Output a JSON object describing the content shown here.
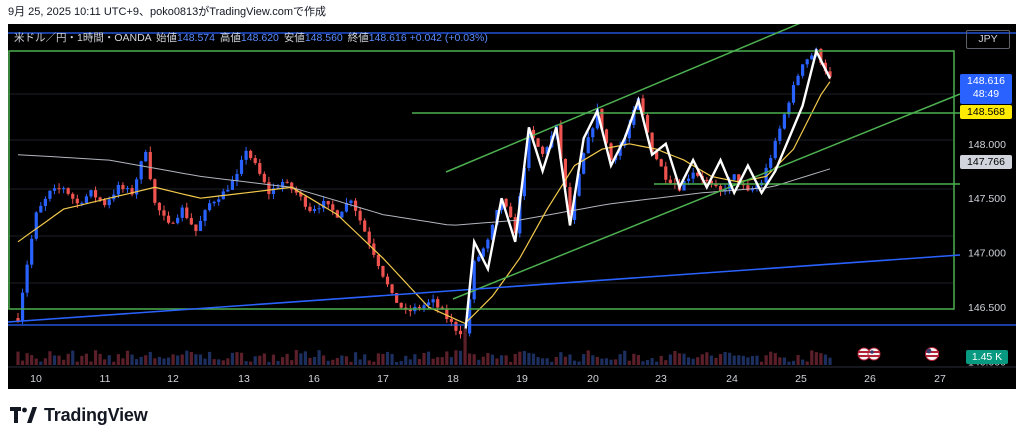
{
  "caption": "9月 25, 2025 10:11 UTC+9、poko0813がTradingView.comで作成",
  "legend": {
    "symbol": "米ドル／円・1時間・OANDA",
    "open_label": "始値",
    "open": "148.574",
    "high_label": "高値",
    "high": "148.620",
    "low_label": "安値",
    "low": "148.560",
    "close_label": "終値",
    "close": "148.616",
    "change": "+0.042 (+0.03%)"
  },
  "currency": "JPY",
  "price_tags": {
    "last_price": "148.616",
    "countdown": "48:49",
    "yellow_ma": "148.568",
    "gray_ma": "147.766",
    "volume": "1.45 K"
  },
  "brand": "TradingView",
  "colors": {
    "up": "#2962ff",
    "down": "#ef5350",
    "channel": "#4caf50",
    "trendline": "#2962ff",
    "ma_fast": "#f2c94c",
    "ma_slow": "#b2b5be",
    "wave": "#ffffff",
    "background": "#000000"
  },
  "chart_data": {
    "type": "candlestick",
    "symbol": "USD/JPY",
    "timeframe": "1時間",
    "x_ticks": [
      "10",
      "11",
      "12",
      "13",
      "16",
      "17",
      "18",
      "19",
      "20",
      "23",
      "24",
      "25",
      "26",
      "27"
    ],
    "y_ticks": [
      "148.000",
      "147.500",
      "147.000",
      "146.500",
      "146.000"
    ],
    "ylim": [
      145.95,
      149.1
    ],
    "price_path": [
      [
        0,
        146.4
      ],
      [
        2,
        146.9
      ],
      [
        4,
        147.35
      ],
      [
        7,
        147.55
      ],
      [
        10,
        147.6
      ],
      [
        13,
        147.45
      ],
      [
        16,
        147.55
      ],
      [
        19,
        147.45
      ],
      [
        22,
        147.6
      ],
      [
        25,
        147.55
      ],
      [
        28,
        147.95
      ],
      [
        30,
        147.45
      ],
      [
        33,
        147.25
      ],
      [
        36,
        147.4
      ],
      [
        39,
        147.2
      ],
      [
        42,
        147.45
      ],
      [
        45,
        147.55
      ],
      [
        48,
        147.7
      ],
      [
        50,
        147.95
      ],
      [
        52,
        147.8
      ],
      [
        55,
        147.55
      ],
      [
        58,
        147.65
      ],
      [
        61,
        147.55
      ],
      [
        64,
        147.4
      ],
      [
        67,
        147.45
      ],
      [
        70,
        147.35
      ],
      [
        73,
        147.5
      ],
      [
        75,
        147.3
      ],
      [
        78,
        147.0
      ],
      [
        80,
        146.8
      ],
      [
        82,
        146.6
      ],
      [
        85,
        146.45
      ],
      [
        88,
        146.5
      ],
      [
        91,
        146.55
      ],
      [
        94,
        146.4
      ],
      [
        96,
        146.3
      ],
      [
        98,
        146.25
      ],
      [
        100,
        146.9
      ],
      [
        103,
        147.1
      ],
      [
        106,
        147.5
      ],
      [
        109,
        147.2
      ],
      [
        112,
        148.1
      ],
      [
        115,
        147.9
      ],
      [
        118,
        148.15
      ],
      [
        121,
        147.3
      ],
      [
        124,
        147.9
      ],
      [
        127,
        148.3
      ],
      [
        130,
        147.85
      ],
      [
        133,
        148.05
      ],
      [
        136,
        148.4
      ],
      [
        139,
        147.95
      ],
      [
        142,
        147.7
      ],
      [
        145,
        147.6
      ],
      [
        148,
        147.75
      ],
      [
        151,
        147.65
      ],
      [
        154,
        147.55
      ],
      [
        157,
        147.7
      ],
      [
        160,
        147.55
      ],
      [
        163,
        147.65
      ],
      [
        166,
        148.0
      ],
      [
        169,
        148.4
      ],
      [
        172,
        148.75
      ],
      [
        175,
        148.85
      ],
      [
        178,
        148.6
      ]
    ],
    "ma_fast": [
      [
        0,
        147.1
      ],
      [
        10,
        147.4
      ],
      [
        20,
        147.5
      ],
      [
        30,
        147.6
      ],
      [
        40,
        147.5
      ],
      [
        50,
        147.55
      ],
      [
        60,
        147.6
      ],
      [
        70,
        147.35
      ],
      [
        80,
        146.95
      ],
      [
        90,
        146.5
      ],
      [
        98,
        146.35
      ],
      [
        104,
        146.6
      ],
      [
        110,
        146.95
      ],
      [
        116,
        147.4
      ],
      [
        122,
        147.8
      ],
      [
        128,
        147.95
      ],
      [
        134,
        148.0
      ],
      [
        140,
        147.95
      ],
      [
        146,
        147.85
      ],
      [
        152,
        147.7
      ],
      [
        158,
        147.65
      ],
      [
        164,
        147.7
      ],
      [
        170,
        147.95
      ],
      [
        176,
        148.45
      ],
      [
        178,
        148.57
      ]
    ],
    "ma_slow": [
      [
        0,
        147.9
      ],
      [
        20,
        147.85
      ],
      [
        40,
        147.7
      ],
      [
        60,
        147.6
      ],
      [
        80,
        147.35
      ],
      [
        95,
        147.25
      ],
      [
        110,
        147.3
      ],
      [
        130,
        147.45
      ],
      [
        150,
        147.55
      ],
      [
        165,
        147.6
      ],
      [
        178,
        147.77
      ]
    ],
    "volume_scale": "1.45 K"
  }
}
